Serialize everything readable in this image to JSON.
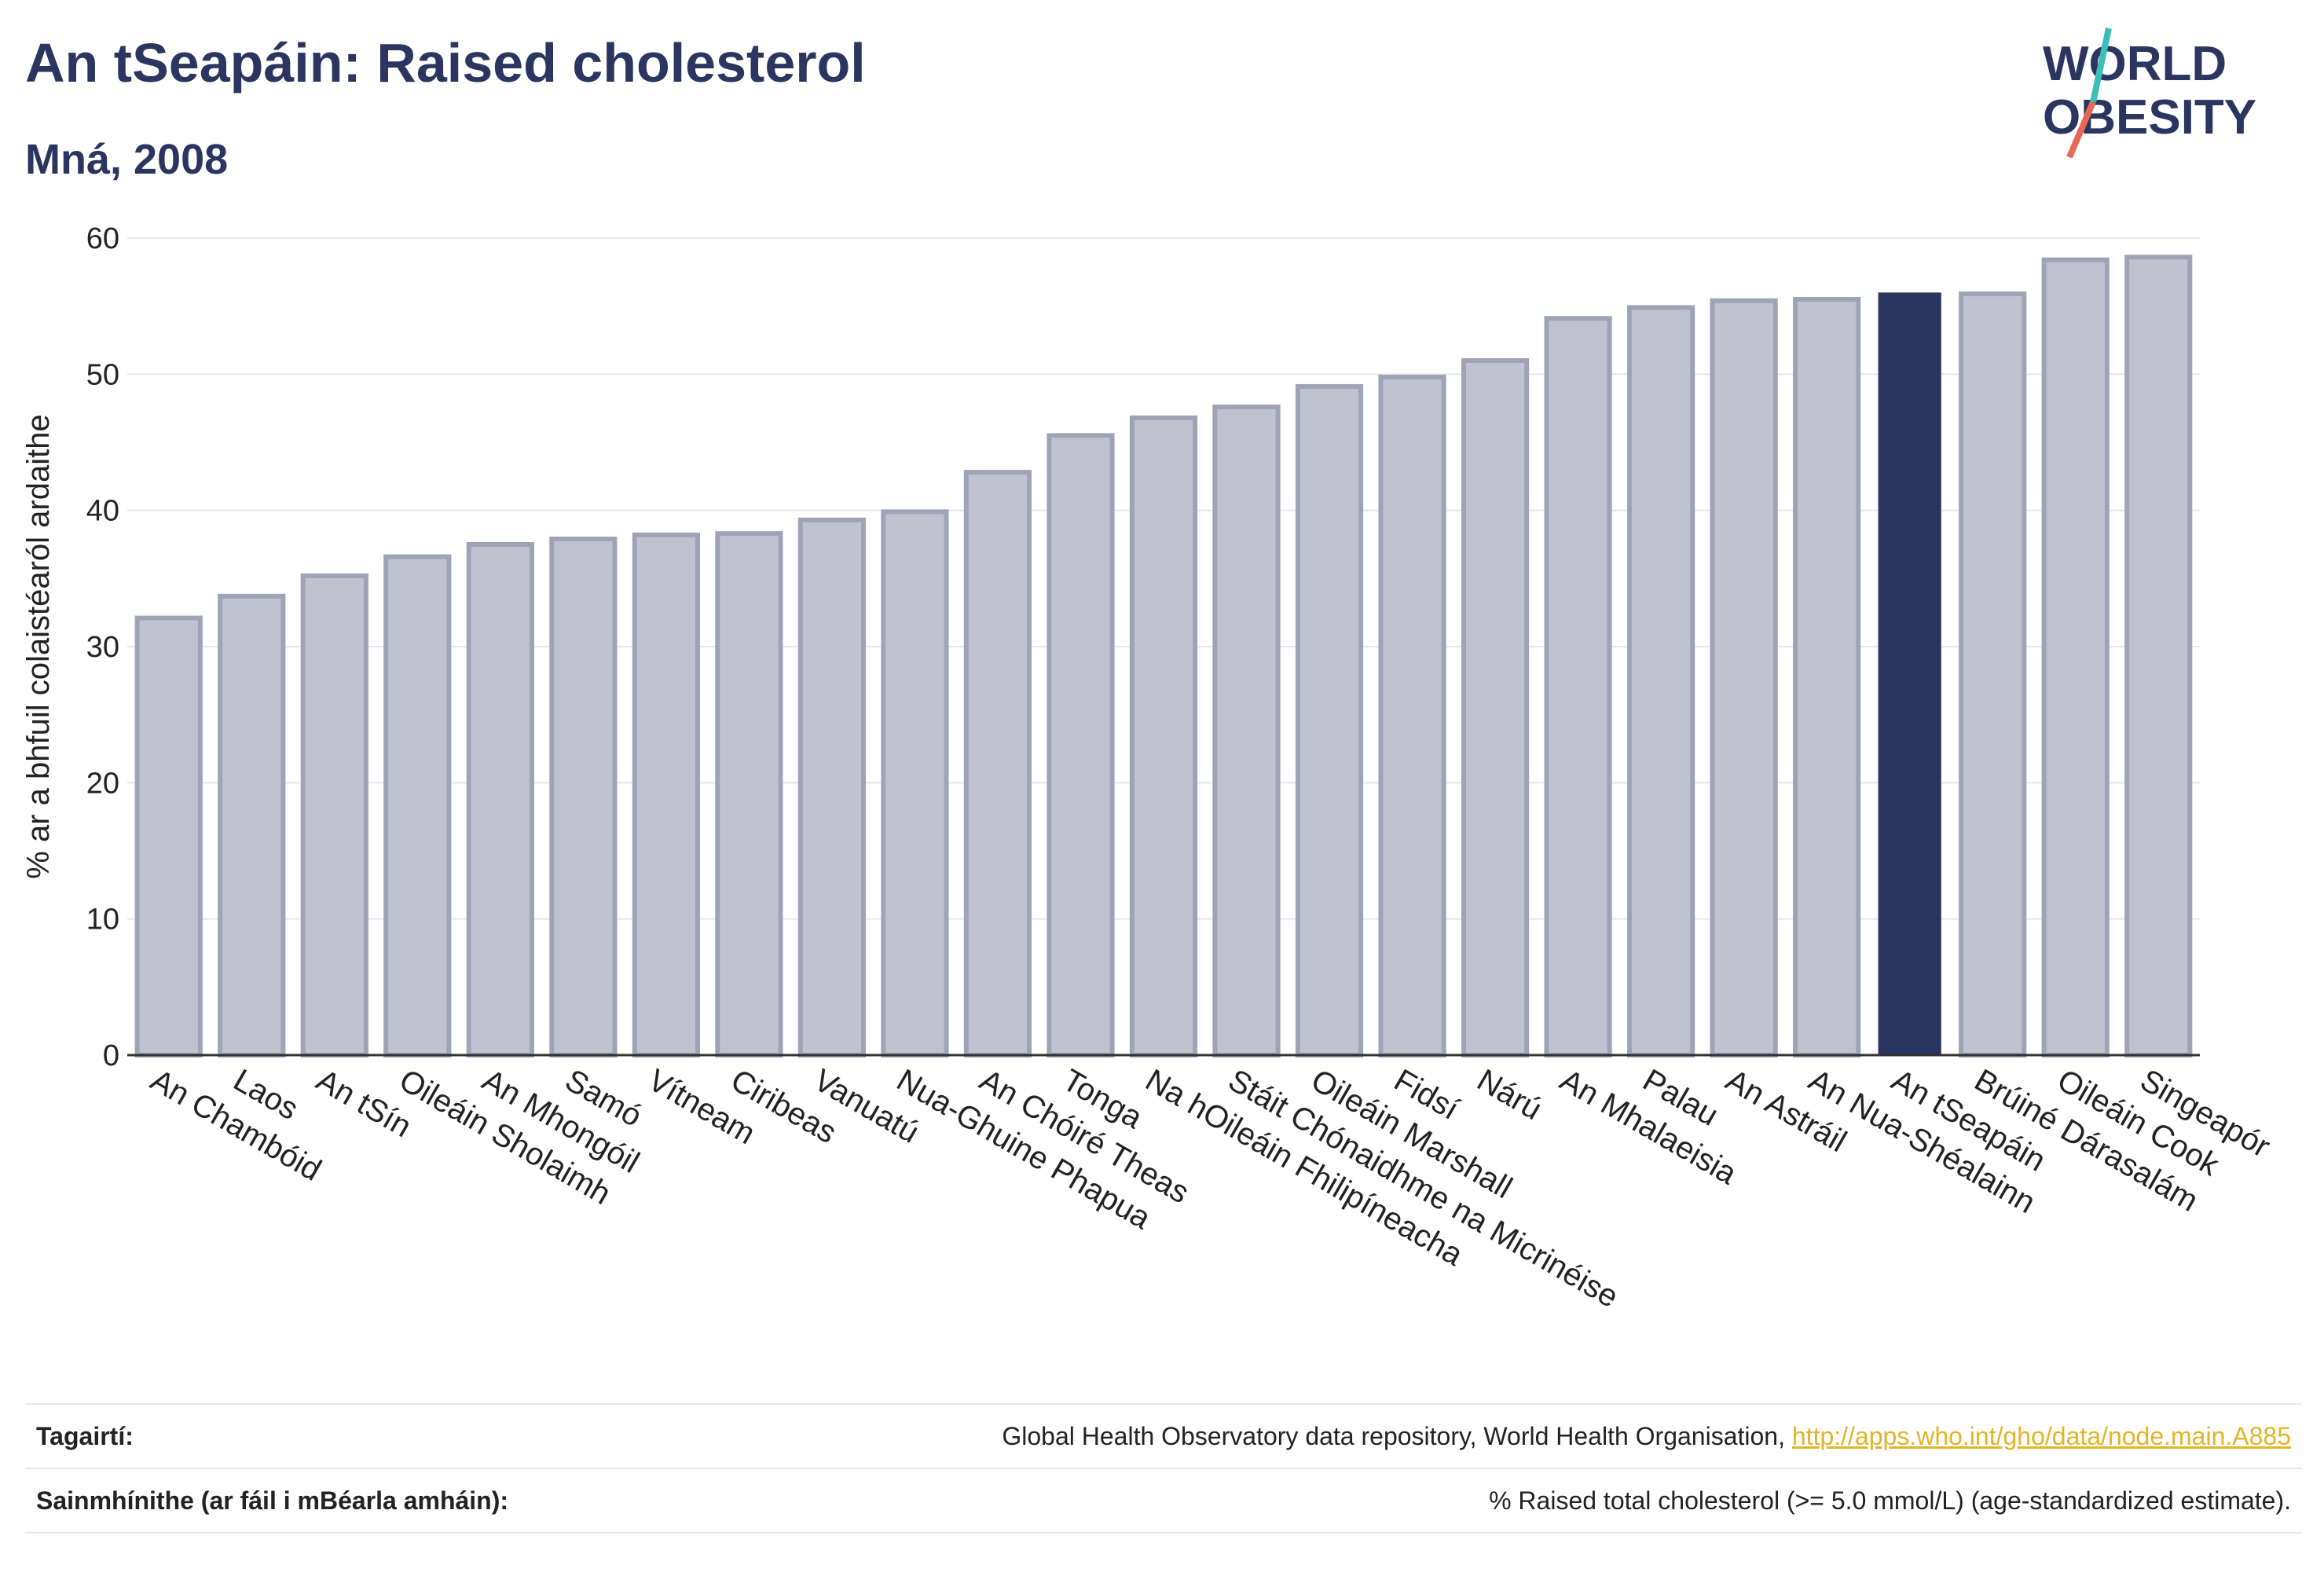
{
  "header": {
    "title": "An tSeapáin: Raised cholesterol",
    "subtitle": "Mná, 2008"
  },
  "logo": {
    "line1": "WORLD",
    "line2": "OBESITY",
    "text_color": "#2a3560",
    "accent_colors": [
      "#e56a55",
      "#3bbfb7"
    ]
  },
  "colors": {
    "bar": "#c0c3cf",
    "bar_stroke": "#9ea3b8",
    "highlight": "#2a3560",
    "grid": "#e6e7ee",
    "axis_text": "#222222"
  },
  "chart_data": {
    "type": "bar",
    "title": "An tSeapáin: Raised cholesterol",
    "subtitle": "Mná, 2008",
    "ylabel": "% ar a bhfuil colaistéaról ardaithe",
    "xlabel": "",
    "ylim": [
      0,
      60
    ],
    "yticks": [
      0,
      10,
      20,
      30,
      40,
      50,
      60
    ],
    "grid": true,
    "highlight_category": "An tSeapáin",
    "categories": [
      "An Chambóid",
      "Laos",
      "An tSín",
      "Oileáin Sholaimh",
      "An Mhongóil",
      "Samó",
      "Vítneam",
      "Ciribeas",
      "Vanuatú",
      "Nua-Ghuine Phapua",
      "An Chóiré Theas",
      "Tonga",
      "Na hOileáin Fhilipíneacha",
      "Stáit Chónaidhme na Micrinéise",
      "Oileáin Marshall",
      "Fidsí",
      "Nárú",
      "An Mhalaeisia",
      "Palau",
      "An Astráil",
      "An Nua-Shéalainn",
      "An tSeapáin",
      "Brúiné Dárasalám",
      "Oileáin Cook",
      "Singeapór"
    ],
    "values": [
      32.1,
      33.7,
      35.2,
      36.6,
      37.5,
      37.9,
      38.2,
      38.3,
      39.3,
      39.9,
      42.8,
      45.5,
      46.8,
      47.6,
      49.1,
      49.8,
      51.0,
      54.1,
      54.9,
      55.4,
      55.5,
      56.0,
      55.9,
      58.4,
      58.6
    ]
  },
  "footer": {
    "references_label": "Tagairtí:",
    "references_text": "Global Health Observatory data repository, World Health Organisation,",
    "references_link": "http://apps.who.int/gho/data/node.main.A885",
    "definitions_label": "Sainmhínithe (ar fáil i mBéarla amháin):",
    "definitions_text": "% Raised total cholesterol (>= 5.0 mmol/L) (age-standardized estimate)."
  }
}
